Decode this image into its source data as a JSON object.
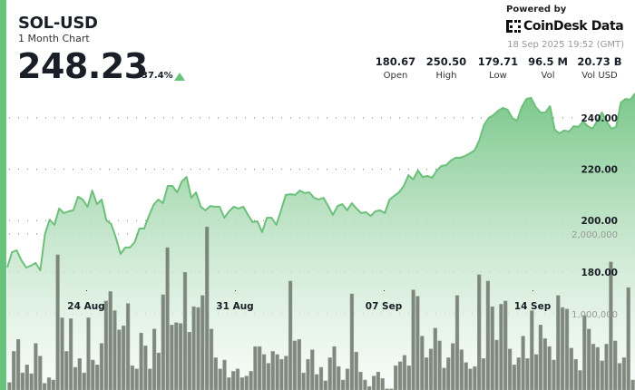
{
  "header": {
    "symbol": "SOL-USD",
    "subtitle": "1 Month Chart",
    "price": "248.23",
    "change": "37.4%",
    "change_direction": "up",
    "powered_by": "Powered by",
    "brand": "CoinDesk Data",
    "timestamp": "18 Sep 2025 19:52 (GMT)",
    "stats": [
      {
        "value": "180.67",
        "label": "Open"
      },
      {
        "value": "250.50",
        "label": "High"
      },
      {
        "value": "179.71",
        "label": "Low"
      },
      {
        "value": "96.5 M",
        "label": "Vol"
      },
      {
        "value": "20.73 B",
        "label": "Vol USD"
      }
    ]
  },
  "colors": {
    "accent": "#67c27a",
    "line": "#6cc07a",
    "bars": "#6f786e"
  },
  "chart_data": {
    "type": "line",
    "title": "SOL-USD 1 Month Chart",
    "price_axis": {
      "ticks": [
        180,
        200,
        220,
        240
      ],
      "tick_labels": [
        "180.00",
        "200.00",
        "220.00",
        "240.00"
      ],
      "range": [
        175,
        253
      ]
    },
    "volume_axis": {
      "ticks": [
        1000000,
        2000000
      ],
      "tick_labels": [
        "1,000,000",
        "2,000,000"
      ],
      "range": [
        0,
        4.9
      ]
    },
    "x_ticks": [
      "24 Aug",
      "31 Aug",
      "07 Sep",
      "14 Sep"
    ],
    "grid": true,
    "price": [
      181.7,
      187.7,
      188.4,
      184.5,
      181.7,
      182.4,
      183.5,
      180.6,
      194.8,
      200.4,
      198.3,
      204.7,
      202.9,
      203.6,
      204,
      209.3,
      208.2,
      205.4,
      211.7,
      206.4,
      208.2,
      200.1,
      198.7,
      193.4,
      187,
      189.5,
      189.5,
      191.6,
      196.9,
      196.9,
      201.8,
      206.1,
      208.2,
      206.8,
      213.5,
      213.5,
      211,
      215.3,
      217,
      208.9,
      211,
      205.4,
      204,
      205.7,
      205.4,
      205.4,
      201.1,
      203.6,
      205.4,
      204.7,
      205.4,
      202.2,
      199.4,
      199.7,
      195.5,
      201.1,
      201.1,
      198.3,
      204,
      210,
      210.3,
      210,
      211.7,
      210.7,
      211,
      208.9,
      208.2,
      208.9,
      205.7,
      202.2,
      205.7,
      206.4,
      204,
      206.8,
      204.7,
      202.9,
      203.3,
      201.8,
      203.6,
      204,
      202.9,
      208.2,
      209.6,
      211,
      213.5,
      217.7,
      216,
      219.5,
      217,
      217.4,
      216.7,
      219.5,
      221.3,
      221.6,
      223.4,
      224.5,
      224.5,
      225.2,
      226.2,
      227.3,
      231.2,
      237.2,
      240,
      241.1,
      242.8,
      243.9,
      243.2,
      240,
      238.9,
      244.2,
      247.4,
      247.8,
      244.2,
      242.1,
      242.1,
      244.6,
      235.4,
      234,
      235.1,
      234.7,
      236.8,
      236.5,
      238.6,
      236.8,
      235.8,
      238.9,
      242.1,
      238.6,
      235.8,
      236.5,
      246,
      247.4,
      247.1,
      249.5
    ],
    "volume_millions": [
      0.14,
      0.53,
      0.68,
      0.26,
      0.36,
      0.25,
      0.63,
      0.47,
      0.13,
      0.2,
      0.17,
      1.74,
      0.95,
      0.53,
      0.94,
      0.33,
      0.44,
      0.26,
      0.95,
      0.42,
      0.36,
      0.63,
      1.16,
      1.28,
      1.04,
      0.8,
      0.85,
      1.13,
      0.35,
      0.31,
      0.76,
      0.6,
      0.31,
      0.81,
      0.51,
      1.24,
      1.83,
      0.86,
      0.89,
      0.88,
      1.52,
      0.77,
      1.09,
      1.08,
      1.23,
      2.09,
      0.81,
      0.45,
      0.31,
      0.42,
      0.2,
      0.28,
      0.31,
      0.2,
      0.22,
      0.28,
      0.59,
      0.59,
      0.49,
      0.38,
      0.53,
      0.49,
      0.43,
      0.47,
      1.41,
      0.66,
      0.68,
      0.26,
      0.43,
      0.55,
      0.24,
      0.33,
      0.16,
      0.45,
      0.59,
      0.34,
      0.17,
      0.31,
      1.25,
      0.52,
      0.27,
      0.17,
      0.09,
      0.22,
      0.27,
      0.19,
      0.06,
      0.06,
      0.35,
      0.4,
      0.48,
      0.35,
      1.3,
      1.22,
      0.72,
      0.45,
      0.56,
      0.82,
      0.66,
      0.32,
      0.45,
      0.63,
      1.23,
      0.55,
      0.39,
      0.31,
      0.34,
      1.49,
      0.44,
      1.41,
      1.09,
      0.67,
      1.12,
      1.16,
      0.56,
      0.36,
      0.45,
      0.72,
      0.44,
      1.04,
      0.49,
      0.86,
      0.69,
      0.59,
      0.42,
      1.23,
      1.08,
      1.06,
      0.57,
      0.43,
      0.29,
      0.98,
      0.81,
      0.62,
      0.58,
      0.41,
      0.62,
      1.65,
      0.66,
      0.38,
      0.45,
      1.33,
      0.17
    ]
  }
}
